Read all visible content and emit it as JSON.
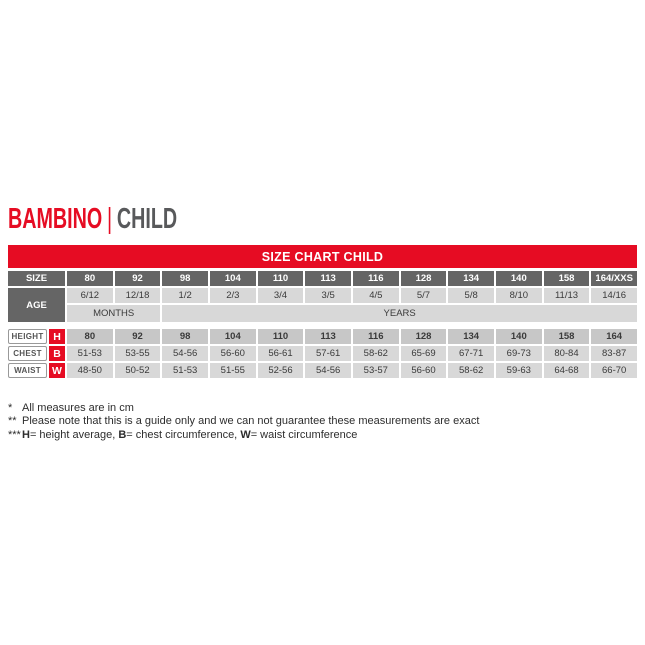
{
  "title": {
    "brand": "BAMBINO",
    "separator": "|",
    "translation": "CHILD"
  },
  "banner": {
    "label": "SIZE CHART CHILD"
  },
  "table": {
    "size_label": "SIZE",
    "age_label": "AGE",
    "months_label": "MONTHS",
    "years_label": "YEARS",
    "sizes": [
      "80",
      "92",
      "98",
      "104",
      "110",
      "113",
      "116",
      "128",
      "134",
      "140",
      "158",
      "164/XXS"
    ],
    "ages": [
      "6/12",
      "12/18",
      "1/2",
      "2/3",
      "3/4",
      "3/5",
      "4/5",
      "5/7",
      "5/8",
      "8/10",
      "11/13",
      "14/16"
    ],
    "measure_rows": [
      {
        "label": "HEIGHT",
        "badge": "H",
        "bold": true,
        "values": [
          "80",
          "92",
          "98",
          "104",
          "110",
          "113",
          "116",
          "128",
          "134",
          "140",
          "158",
          "164"
        ]
      },
      {
        "label": "CHEST",
        "badge": "B",
        "bold": false,
        "values": [
          "51-53",
          "53-55",
          "54-56",
          "56-60",
          "56-61",
          "57-61",
          "58-62",
          "65-69",
          "67-71",
          "69-73",
          "80-84",
          "83-87"
        ]
      },
      {
        "label": "WAIST",
        "badge": "W",
        "bold": false,
        "values": [
          "48-50",
          "50-52",
          "51-53",
          "51-55",
          "52-56",
          "54-56",
          "53-57",
          "56-60",
          "58-62",
          "59-63",
          "64-68",
          "66-70"
        ]
      }
    ]
  },
  "footnotes": [
    {
      "marker": "*",
      "segments": [
        {
          "text": "All measures are in cm",
          "bold": false
        }
      ]
    },
    {
      "marker": "**",
      "segments": [
        {
          "text": "Please note that this is a guide only and we can not guarantee these measurements are exact",
          "bold": false
        }
      ]
    },
    {
      "marker": "***",
      "segments": [
        {
          "text": "H",
          "bold": true
        },
        {
          "text": "= height average, ",
          "bold": false
        },
        {
          "text": "B",
          "bold": true
        },
        {
          "text": "= chest circumference, ",
          "bold": false
        },
        {
          "text": "W",
          "bold": true
        },
        {
          "text": "= waist circumference",
          "bold": false
        }
      ]
    }
  ],
  "colors": {
    "accent_red": "#e60c23",
    "header_gray": "#656565",
    "cell_gray": "#d8d8d8",
    "height_row_gray": "#c7c7c7",
    "title_gray": "#58595b"
  }
}
